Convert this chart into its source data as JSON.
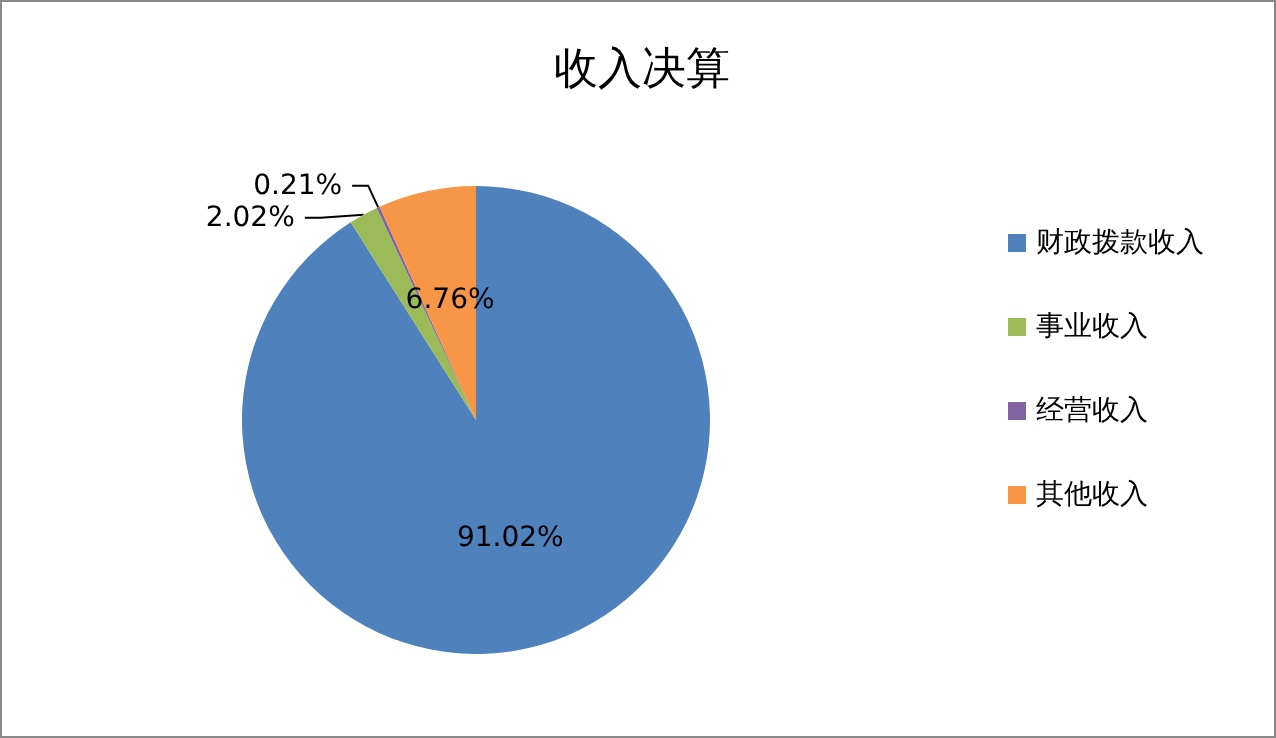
{
  "chart_data": {
    "type": "pie",
    "title": "收入决算",
    "categories": [
      "财政拨款收入",
      "事业收入",
      "经营收入",
      "其他收入"
    ],
    "values": [
      91.02,
      2.02,
      0.21,
      6.76
    ],
    "colors": [
      "#4f81bd",
      "#9bbb59",
      "#8064a2",
      "#f79646"
    ],
    "value_labels": [
      "91.02%",
      "2.02%",
      "0.21%",
      "6.76%"
    ],
    "legend": "right"
  }
}
